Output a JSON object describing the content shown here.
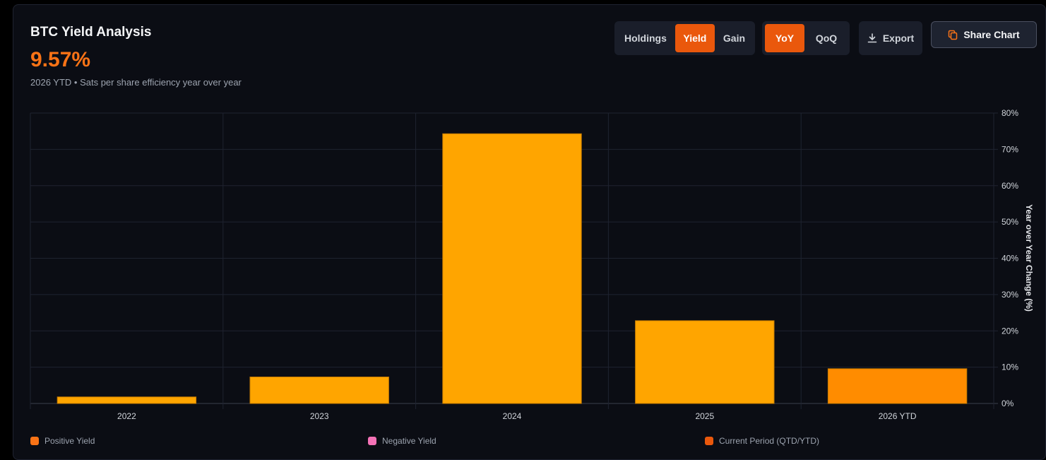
{
  "header": {
    "title": "BTC Yield Analysis",
    "value": "9.57%",
    "subtitle": "2026 YTD • Sats per share efficiency year over year"
  },
  "metric_tabs": [
    {
      "label": "Holdings",
      "active": false
    },
    {
      "label": "Yield",
      "active": true
    },
    {
      "label": "Gain",
      "active": false
    }
  ],
  "period_tabs": [
    {
      "label": "YoY",
      "active": true
    },
    {
      "label": "QoQ",
      "active": false
    }
  ],
  "toolbar": {
    "export_label": "Export",
    "export_icon": "download-icon",
    "share_label": "Share Chart",
    "share_icon": "copy-icon"
  },
  "chart_data": {
    "type": "bar",
    "categories": [
      "2022",
      "2023",
      "2024",
      "2025",
      "2026 YTD"
    ],
    "values": [
      1.8,
      7.3,
      74.3,
      22.8,
      9.57
    ],
    "current_period_index": 4,
    "ylabel": "Year over Year Change (%)",
    "ylim": [
      0,
      80
    ],
    "yticks": [
      "0%",
      "10%",
      "20%",
      "30%",
      "40%",
      "50%",
      "60%",
      "70%",
      "80%"
    ],
    "y_axis_side": "right",
    "grid": true,
    "legend_position": "bottom"
  },
  "legend": [
    {
      "label": "Positive Yield",
      "color": "#f97316"
    },
    {
      "label": "Negative Yield",
      "color": "#f472b6"
    },
    {
      "label": "Current Period (QTD/YTD)",
      "color": "#ea580c"
    }
  ],
  "colors": {
    "positive_bar": "#ffa500",
    "current_bar": "#ff8c00",
    "accent": "#f97316"
  }
}
